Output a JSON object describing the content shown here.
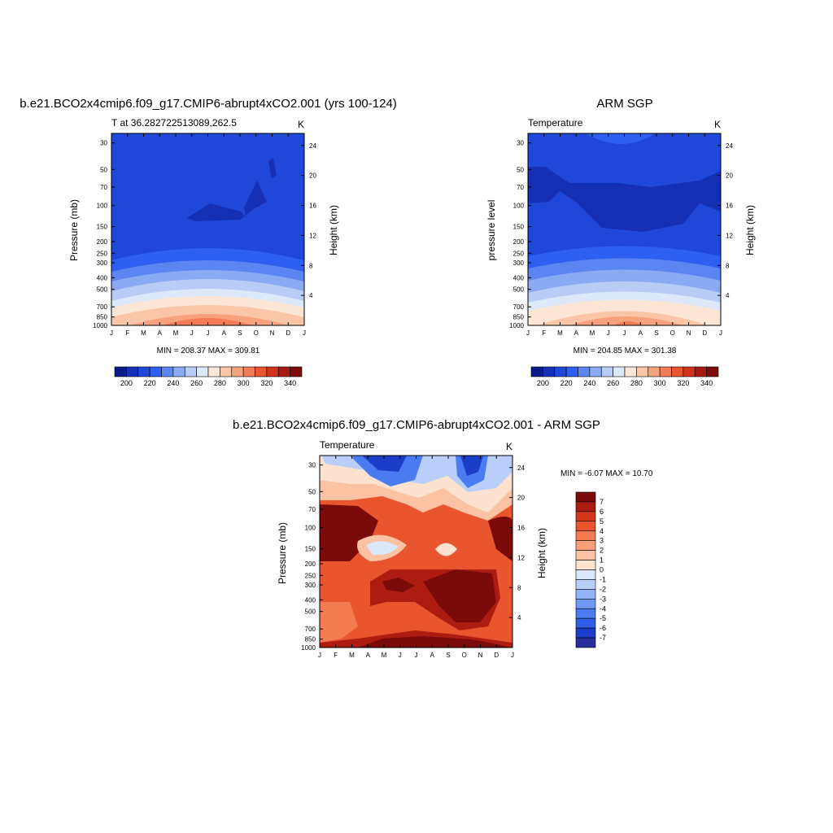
{
  "palette": {
    "seq": [
      "#0a1a8c",
      "#1530b4",
      "#1f47d8",
      "#2d5ff0",
      "#5b86f2",
      "#8aaaf3",
      "#b8cdf6",
      "#dde9fb",
      "#fde6d6",
      "#fbc5a8",
      "#f7a27d",
      "#f27c55",
      "#e85530",
      "#d0321a",
      "#a81a10",
      "#7d0c0a"
    ],
    "diff": [
      "#2a2c9a",
      "#1a3ec8",
      "#2f5fe6",
      "#4b7bf0",
      "#6e98f3",
      "#92b3f6",
      "#b9cff9",
      "#dbe8fc",
      "#fde3cf",
      "#fbc3a3",
      "#f8a07a",
      "#f47b52",
      "#e9552f",
      "#d4361c",
      "#ac1c10",
      "#7b0b0a"
    ]
  },
  "panels": [
    {
      "id": "model",
      "title": "b.e21.BCO2x4cmip6.f09_g17.CMIP6-abrupt4xCO2.001 (yrs 100-124)",
      "left_label": "T at 36.282722513089,262.5",
      "right_label": "K",
      "ylabel": "Pressure (mb)",
      "ylabel_right": "Height (km)",
      "minmax": "MIN = 208.37 MAX = 309.81",
      "colorbar_labels": [
        "200",
        "220",
        "240",
        "260",
        "280",
        "300",
        "320",
        "340"
      ]
    },
    {
      "id": "obs",
      "title": "ARM SGP",
      "left_label": "Temperature",
      "right_label": "K",
      "ylabel": "pressure level",
      "ylabel_right": "Height (km)",
      "minmax": "MIN = 204.85 MAX = 301.38",
      "colorbar_labels": [
        "200",
        "220",
        "240",
        "260",
        "280",
        "300",
        "320",
        "340"
      ]
    },
    {
      "id": "diff",
      "title": "b.e21.BCO2x4cmip6.f09_g17.CMIP6-abrupt4xCO2.001 - ARM SGP",
      "left_label": "Temperature",
      "right_label": "K",
      "ylabel": "Pressure (mb)",
      "ylabel_right": "Height (km)",
      "minmax": "MIN =  -6.07 MAX =  10.70",
      "colorbar_labels": [
        "7",
        "6",
        "5",
        "4",
        "3",
        "2",
        "1",
        "0",
        "-1",
        "-2",
        "-3",
        "-4",
        "-5",
        "-6",
        "-7"
      ]
    }
  ],
  "chart_data": [
    {
      "type": "heatmap",
      "title": "b.e21.BCO2x4cmip6.f09_g17.CMIP6-abrupt4xCO2.001 (yrs 100-124)",
      "ylabel": "Pressure (mb)",
      "x": [
        "J",
        "F",
        "M",
        "A",
        "M",
        "J",
        "J",
        "A",
        "S",
        "O",
        "N",
        "D",
        "J"
      ],
      "y_pressure_ticks": [
        30,
        50,
        70,
        100,
        150,
        200,
        250,
        300,
        400,
        500,
        700,
        850,
        1000
      ],
      "y_height_ticks": [
        4,
        8,
        12,
        16,
        20,
        24
      ],
      "units": "K",
      "min": 208.37,
      "max": 309.81
    },
    {
      "type": "heatmap",
      "title": "ARM SGP",
      "ylabel": "pressure level",
      "x": [
        "J",
        "F",
        "M",
        "A",
        "M",
        "J",
        "J",
        "A",
        "S",
        "O",
        "N",
        "D",
        "J"
      ],
      "y_pressure_ticks": [
        30,
        50,
        70,
        100,
        150,
        200,
        250,
        300,
        400,
        500,
        700,
        850,
        1000
      ],
      "y_height_ticks": [
        4,
        8,
        12,
        16,
        20,
        24
      ],
      "units": "K",
      "min": 204.85,
      "max": 301.38
    },
    {
      "type": "heatmap",
      "title": "b.e21.BCO2x4cmip6.f09_g17.CMIP6-abrupt4xCO2.001 - ARM SGP",
      "ylabel": "Pressure (mb)",
      "x": [
        "J",
        "F",
        "M",
        "A",
        "M",
        "J",
        "J",
        "A",
        "S",
        "O",
        "N",
        "D",
        "J"
      ],
      "y_pressure_ticks": [
        30,
        50,
        70,
        100,
        150,
        200,
        250,
        300,
        400,
        500,
        700,
        850,
        1000
      ],
      "y_height_ticks": [
        4,
        8,
        12,
        16,
        20,
        24
      ],
      "units": "K",
      "min": -6.07,
      "max": 10.7,
      "levels": [
        -7,
        -6,
        -5,
        -4,
        -3,
        -2,
        -1,
        0,
        1,
        2,
        3,
        4,
        5,
        6,
        7
      ]
    }
  ]
}
